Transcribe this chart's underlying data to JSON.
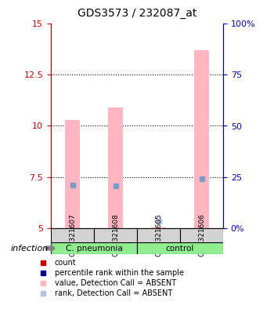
{
  "title": "GDS3573 / 232087_at",
  "samples": [
    "GSM321607",
    "GSM321608",
    "GSM321605",
    "GSM321606"
  ],
  "groups": [
    "C. pneumonia",
    "C. pneumonia",
    "control",
    "control"
  ],
  "group_labels": [
    "C. pneumonia",
    "control"
  ],
  "group_colors": [
    "#90ee90",
    "#90ee90"
  ],
  "bar_bottom": 5.0,
  "ylim_left": [
    5,
    15
  ],
  "ylim_right": [
    0,
    100
  ],
  "yticks_left": [
    5,
    7.5,
    10,
    12.5,
    15
  ],
  "yticks_right": [
    0,
    25,
    50,
    75,
    100
  ],
  "ytick_labels_left": [
    "5",
    "7.5",
    "10",
    "12.5",
    "15"
  ],
  "ytick_labels_right": [
    "0%",
    "25",
    "50",
    "75",
    "100%"
  ],
  "pink_bar_values": [
    10.3,
    10.9,
    5.05,
    13.7
  ],
  "pink_bar_color": "#ffb6c1",
  "blue_square_values": [
    7.1,
    7.05,
    5.35,
    7.4
  ],
  "blue_square_color": "#7b9bc8",
  "absent_rank_values": [
    null,
    null,
    5.35,
    null
  ],
  "absent_rank_color": "#b0c4de",
  "background_color": "#ffffff",
  "group1_samples": [
    0,
    1
  ],
  "group2_samples": [
    2,
    3
  ],
  "group1_color": "#90ee90",
  "group2_color": "#90ee90",
  "sample_box_color": "#d3d3d3",
  "legend_items": [
    {
      "color": "#cc0000",
      "label": "count"
    },
    {
      "color": "#00008b",
      "label": "percentile rank within the sample"
    },
    {
      "color": "#ffb6c1",
      "label": "value, Detection Call = ABSENT"
    },
    {
      "color": "#b0c4de",
      "label": "rank, Detection Call = ABSENT"
    }
  ],
  "infection_label": "infection",
  "left_axis_color": "#cc0000",
  "right_axis_color": "#0000cc"
}
